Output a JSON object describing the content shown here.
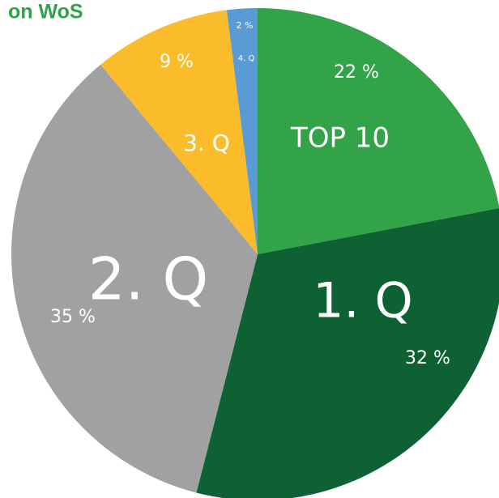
{
  "chart_data": {
    "type": "pie",
    "title": "on WoS",
    "categories": [
      "TOP 10",
      "1. Q",
      "2. Q",
      "3. Q",
      "4. Q"
    ],
    "values": [
      22,
      32,
      35,
      9,
      2
    ],
    "value_labels": [
      "22 %",
      "32 %",
      "35 %",
      "9 %",
      "2 %"
    ],
    "colors": [
      "#33a34a",
      "#0d6133",
      "#a1a1a3",
      "#fbbc2c",
      "#5a9bd6"
    ]
  }
}
